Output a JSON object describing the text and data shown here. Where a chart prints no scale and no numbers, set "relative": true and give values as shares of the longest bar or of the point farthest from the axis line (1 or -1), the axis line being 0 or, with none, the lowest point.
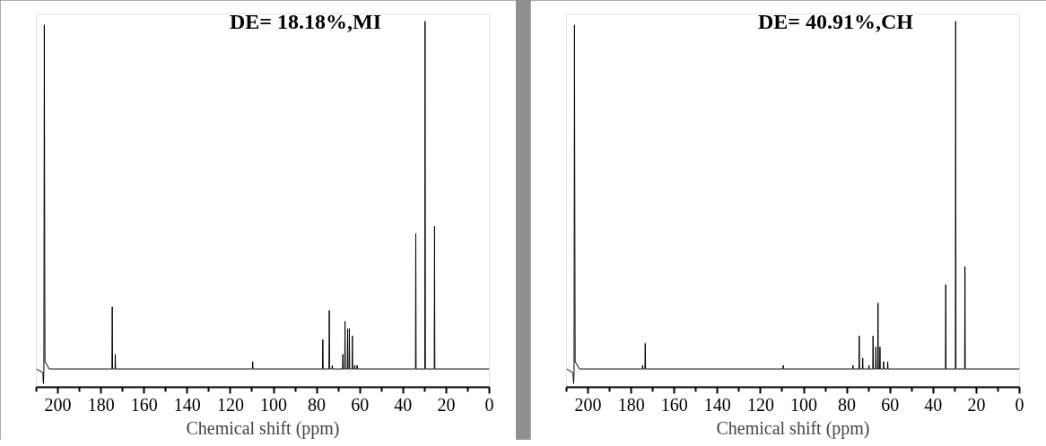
{
  "chart_data": [
    {
      "type": "line",
      "title": "DE= 18.18%,MI",
      "xlabel": "Chemical shift (ppm)",
      "color": "#000000",
      "relative": true,
      "tick_labels": "x",
      "xlim": [
        210,
        0
      ],
      "xticks": [
        200,
        180,
        160,
        140,
        120,
        100,
        80,
        60,
        40,
        20,
        0
      ],
      "x": [
        210,
        207.0,
        206.7,
        206.5,
        206.3,
        206.0,
        204.0,
        174.95,
        174.8,
        174.65,
        173.55,
        173.4,
        173.25,
        109.85,
        109.7,
        109.55,
        77.35,
        77.2,
        77.05,
        74.35,
        74.2,
        74.05,
        72.95,
        72.8,
        72.65,
        68.05,
        67.9,
        67.75,
        67.05,
        66.9,
        66.75,
        65.85,
        65.7,
        65.55,
        65.05,
        64.9,
        64.75,
        63.65,
        63.5,
        63.35,
        62.55,
        62.4,
        62.25,
        61.45,
        61.3,
        61.15,
        34.25,
        34.1,
        33.95,
        29.95,
        29.8,
        29.65,
        25.55,
        25.4,
        25.25,
        0
      ],
      "values": [
        0.05,
        0.04,
        0.01,
        0.04,
        0.99,
        0.07,
        0.05,
        0.05,
        0.22,
        0.05,
        0.05,
        0.09,
        0.05,
        0.05,
        0.07,
        0.05,
        0.05,
        0.13,
        0.05,
        0.05,
        0.21,
        0.05,
        0.05,
        0.06,
        0.05,
        0.05,
        0.09,
        0.05,
        0.05,
        0.18,
        0.05,
        0.05,
        0.16,
        0.05,
        0.05,
        0.16,
        0.05,
        0.05,
        0.14,
        0.05,
        0.05,
        0.06,
        0.05,
        0.05,
        0.06,
        0.05,
        0.05,
        0.42,
        0.05,
        0.05,
        1.0,
        0.05,
        0.05,
        0.44,
        0.05,
        0.05
      ]
    },
    {
      "type": "line",
      "title": "DE= 40.91%,CH",
      "xlabel": "Chemical shift (ppm)",
      "color": "#000000",
      "relative": true,
      "tick_labels": "x",
      "xlim": [
        210,
        0
      ],
      "xticks": [
        200,
        180,
        160,
        140,
        120,
        100,
        80,
        60,
        40,
        20,
        0
      ],
      "x": [
        210,
        207.0,
        206.7,
        206.5,
        206.3,
        206.0,
        204.0,
        174.85,
        174.7,
        174.55,
        173.65,
        173.5,
        173.35,
        109.65,
        109.5,
        109.35,
        77.35,
        77.2,
        77.05,
        74.45,
        74.3,
        74.15,
        72.85,
        72.7,
        72.55,
        69.95,
        69.8,
        69.65,
        68.05,
        67.9,
        67.75,
        66.75,
        66.6,
        66.45,
        65.75,
        65.6,
        65.45,
        64.85,
        64.7,
        64.55,
        63.15,
        63.0,
        62.85,
        61.25,
        61.1,
        60.95,
        34.35,
        34.2,
        34.05,
        29.75,
        29.6,
        29.45,
        25.45,
        25.3,
        25.15,
        0
      ],
      "values": [
        0.05,
        0.04,
        0.01,
        0.04,
        0.99,
        0.07,
        0.05,
        0.05,
        0.06,
        0.05,
        0.05,
        0.12,
        0.05,
        0.05,
        0.06,
        0.05,
        0.05,
        0.06,
        0.05,
        0.05,
        0.14,
        0.05,
        0.05,
        0.08,
        0.05,
        0.05,
        0.06,
        0.05,
        0.05,
        0.14,
        0.05,
        0.05,
        0.11,
        0.05,
        0.05,
        0.23,
        0.05,
        0.05,
        0.11,
        0.05,
        0.05,
        0.07,
        0.05,
        0.05,
        0.07,
        0.05,
        0.05,
        0.28,
        0.05,
        0.05,
        1.0,
        0.05,
        0.05,
        0.33,
        0.05,
        0.05
      ]
    }
  ]
}
